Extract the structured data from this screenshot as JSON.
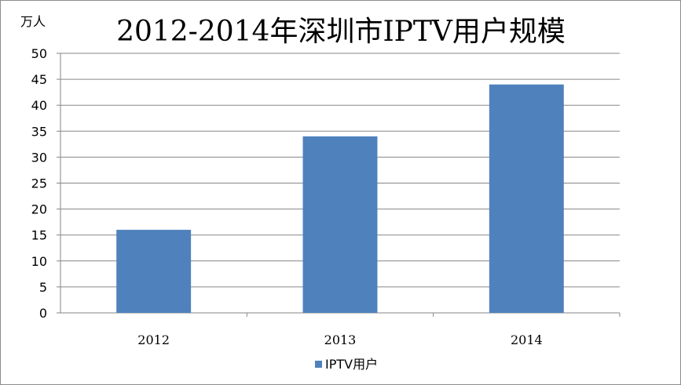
{
  "chart_data": {
    "type": "bar",
    "title": "2012-2014年深圳市IPTV用户规模",
    "ylabel": "万人",
    "xlabel": "",
    "categories": [
      "2012",
      "2013",
      "2014"
    ],
    "series": [
      {
        "name": "IPTV用户",
        "values": [
          16,
          34,
          44
        ]
      }
    ],
    "ylim": [
      0,
      50
    ],
    "yticks": [
      "0",
      "5",
      "10",
      "15",
      "20",
      "25",
      "30",
      "35",
      "40",
      "45",
      "50"
    ],
    "grid": true,
    "legend_position": "bottom",
    "colors": {
      "bar": "#4f81bd",
      "grid": "#868686",
      "axis": "#868686"
    }
  }
}
